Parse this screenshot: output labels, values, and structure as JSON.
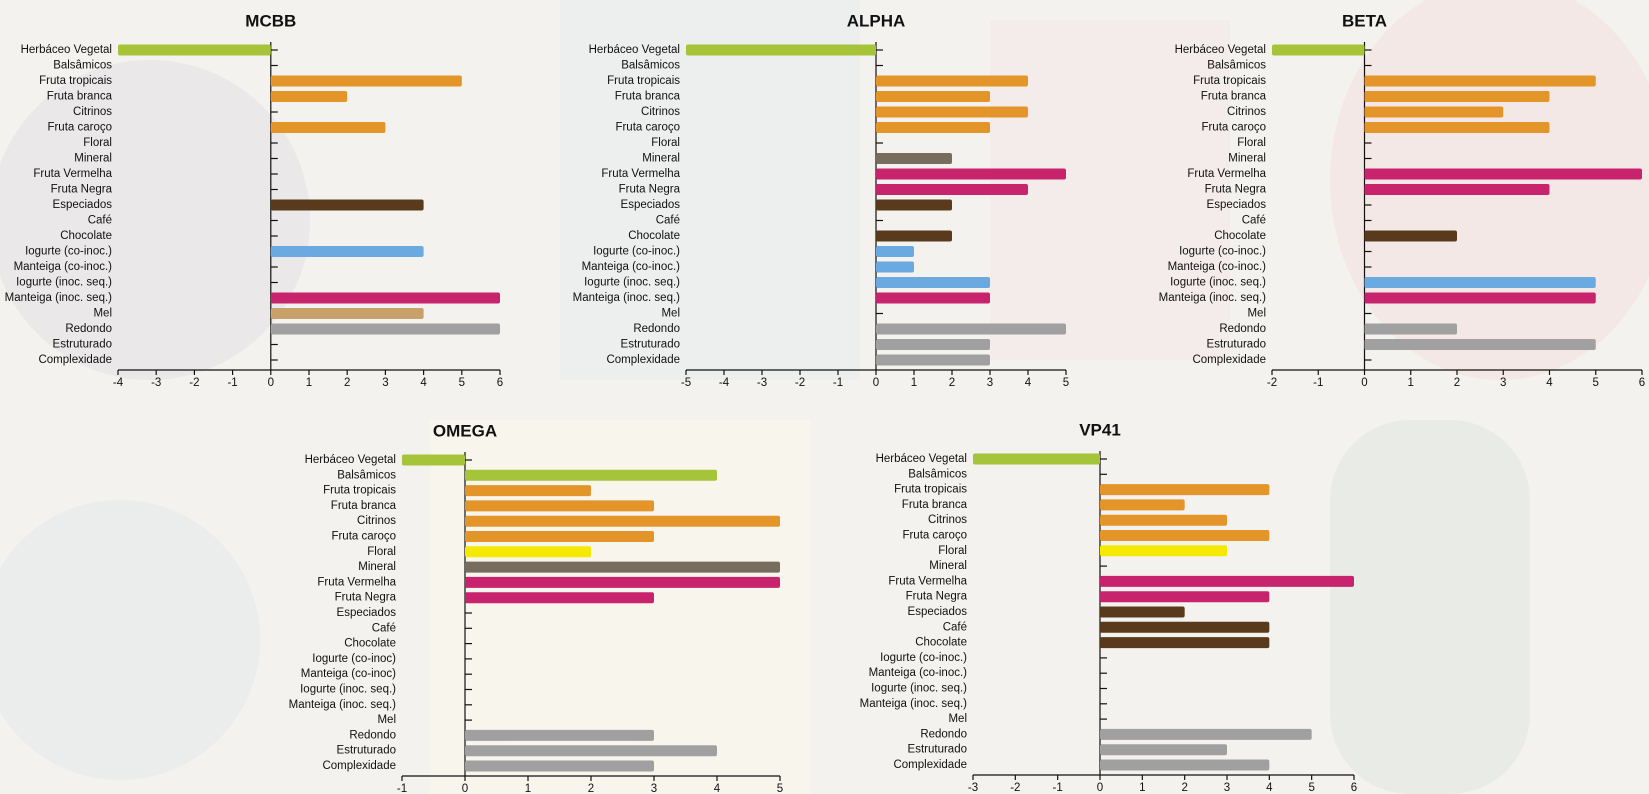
{
  "chart_data": [
    {
      "type": "bar",
      "orientation": "horizontal",
      "title": "MCBB",
      "categories": [
        "Herbáceo  Vegetal",
        "Balsâmicos",
        "Fruta tropicais",
        "Fruta branca",
        "Citrinos",
        "Fruta caroço",
        "Floral",
        "Mineral",
        "Fruta Vermelha",
        "Fruta Negra",
        "Especiados",
        "Café",
        "Chocolate",
        "Iogurte (co-inoc.)",
        "Manteiga  (co-inoc.)",
        "Iogurte (inoc. seq.)",
        "Manteiga (inoc. seq.)",
        "Mel",
        "Redondo",
        "Estruturado",
        "Complexidade"
      ],
      "values": [
        -4,
        0,
        5,
        2,
        0,
        3,
        0,
        0,
        0,
        0,
        4,
        0,
        0,
        4,
        0,
        0,
        6,
        4,
        6,
        0,
        0
      ],
      "colors": [
        "#a5c43a",
        "#a5c43a",
        "#e3952a",
        "#e3952a",
        "#e3952a",
        "#e3952a",
        "#f5e900",
        "#776d5c",
        "#c8246e",
        "#c8246e",
        "#5a3a1c",
        "#5a3a1c",
        "#5a3a1c",
        "#6aaae0",
        "#6aaae0",
        "#6aaae0",
        "#c8246e",
        "#c8a06a",
        "#a0a0a0",
        "#a0a0a0",
        "#a0a0a0"
      ],
      "xlim": [
        -4,
        6
      ],
      "xticks": [
        -4,
        -3,
        -2,
        -1,
        0,
        1,
        2,
        3,
        4,
        5,
        6
      ]
    },
    {
      "type": "bar",
      "orientation": "horizontal",
      "title": "ALPHA",
      "categories": [
        "Herbáceo  Vegetal",
        "Balsâmicos",
        "Fruta tropicais",
        "Fruta branca",
        "Citrinos",
        "Fruta caroço",
        "Floral",
        "Mineral",
        "Fruta Vermelha",
        "Fruta Negra",
        "Especiados",
        "Café",
        "Chocolate",
        "Iogurte (co-inoc.)",
        "Manteiga  (co-inoc.)",
        "Iogurte (inoc. seq.)",
        "Manteiga (inoc. seq.)",
        "Mel",
        "Redondo",
        "Estruturado",
        "Complexidade"
      ],
      "values": [
        -5,
        0,
        4,
        3,
        4,
        3,
        0,
        2,
        5,
        4,
        2,
        0,
        2,
        1,
        1,
        3,
        3,
        0,
        5,
        3,
        3
      ],
      "colors": [
        "#a5c43a",
        "#a5c43a",
        "#e3952a",
        "#e3952a",
        "#e3952a",
        "#e3952a",
        "#f5e900",
        "#776d5c",
        "#c8246e",
        "#c8246e",
        "#5a3a1c",
        "#5a3a1c",
        "#5a3a1c",
        "#6aaae0",
        "#6aaae0",
        "#6aaae0",
        "#c8246e",
        "#c8a06a",
        "#a0a0a0",
        "#a0a0a0",
        "#a0a0a0"
      ],
      "xlim": [
        -5,
        5
      ],
      "xticks": [
        -5,
        -4,
        -3,
        -2,
        -1,
        0,
        1,
        2,
        3,
        4,
        5
      ]
    },
    {
      "type": "bar",
      "orientation": "horizontal",
      "title": "BETA",
      "categories": [
        "Herbáceo  Vegetal",
        "Balsâmicos",
        "Fruta tropicais",
        "Fruta branca",
        "Citrinos",
        "Fruta caroço",
        "Floral",
        "Mineral",
        "Fruta Vermelha",
        "Fruta Negra",
        "Especiados",
        "Café",
        "Chocolate",
        "Iogurte (co-inoc.)",
        "Manteiga  (co-inoc.)",
        "Iogurte (inoc. seq.)",
        "Manteiga (inoc. seq.)",
        "Mel",
        "Redondo",
        "Estruturado",
        "Complexidade"
      ],
      "values": [
        -2,
        0,
        5,
        4,
        3,
        4,
        0,
        0,
        6,
        4,
        0,
        0,
        2,
        0,
        0,
        5,
        5,
        0,
        2,
        5,
        0
      ],
      "colors": [
        "#a5c43a",
        "#a5c43a",
        "#e3952a",
        "#e3952a",
        "#e3952a",
        "#e3952a",
        "#f5e900",
        "#776d5c",
        "#c8246e",
        "#c8246e",
        "#5a3a1c",
        "#5a3a1c",
        "#5a3a1c",
        "#6aaae0",
        "#6aaae0",
        "#6aaae0",
        "#c8246e",
        "#c8a06a",
        "#a0a0a0",
        "#a0a0a0",
        "#a0a0a0"
      ],
      "xlim": [
        -2,
        6
      ],
      "xticks": [
        -2,
        -1,
        0,
        1,
        2,
        3,
        4,
        5,
        6
      ]
    },
    {
      "type": "bar",
      "orientation": "horizontal",
      "title": "OMEGA",
      "categories": [
        "Herbáceo  Vegetal",
        "Balsâmicos",
        "Fruta tropicais",
        "Fruta branca",
        "Citrinos",
        "Fruta caroço",
        "Floral",
        "Mineral",
        "Fruta Vermelha",
        "Fruta Negra",
        "Especiados",
        "Café",
        "Chocolate",
        "Iogurte (co-inoc)",
        "Manteiga  (co-inoc)",
        "Iogurte (inoc. seq.)",
        "Manteiga (inoc. seq.)",
        "Mel",
        "Redondo",
        "Estruturado",
        "Complexidade"
      ],
      "values": [
        -1,
        4,
        2,
        3,
        5,
        3,
        2,
        5,
        5,
        3,
        0,
        0,
        0,
        0,
        0,
        0,
        0,
        0,
        3,
        4,
        3
      ],
      "colors": [
        "#a5c43a",
        "#a5c43a",
        "#e3952a",
        "#e3952a",
        "#e3952a",
        "#e3952a",
        "#f5e900",
        "#776d5c",
        "#c8246e",
        "#c8246e",
        "#5a3a1c",
        "#5a3a1c",
        "#5a3a1c",
        "#6aaae0",
        "#6aaae0",
        "#6aaae0",
        "#c8246e",
        "#c8a06a",
        "#a0a0a0",
        "#a0a0a0",
        "#a0a0a0"
      ],
      "xlim": [
        -1,
        5
      ],
      "xticks": [
        -1,
        0,
        1,
        2,
        3,
        4,
        5
      ]
    },
    {
      "type": "bar",
      "orientation": "horizontal",
      "title": "VP41",
      "categories": [
        "Herbáceo  Vegetal",
        "Balsâmicos",
        "Fruta tropicais",
        "Fruta branca",
        "Citrinos",
        "Fruta caroço",
        "Floral",
        "Mineral",
        "Fruta Vermelha",
        "Fruta Negra",
        "Especiados",
        "Café",
        "Chocolate",
        "Iogurte (co-inoc.)",
        "Manteiga  (co-inoc.)",
        "Iogurte (inoc. seq.)",
        "Manteiga (inoc. seq.)",
        "Mel",
        "Redondo",
        "Estruturado",
        "Complexidade"
      ],
      "values": [
        -3,
        0,
        4,
        2,
        3,
        4,
        3,
        0,
        6,
        4,
        2,
        4,
        4,
        0,
        0,
        0,
        0,
        0,
        5,
        3,
        4
      ],
      "colors": [
        "#a5c43a",
        "#a5c43a",
        "#e3952a",
        "#e3952a",
        "#e3952a",
        "#e3952a",
        "#f5e900",
        "#776d5c",
        "#c8246e",
        "#c8246e",
        "#5a3a1c",
        "#5a3a1c",
        "#5a3a1c",
        "#6aaae0",
        "#6aaae0",
        "#6aaae0",
        "#c8246e",
        "#c8a06a",
        "#a0a0a0",
        "#a0a0a0",
        "#a0a0a0"
      ],
      "xlim": [
        -3,
        6
      ],
      "xticks": [
        -3,
        -2,
        -1,
        0,
        1,
        2,
        3,
        4,
        5,
        6
      ]
    }
  ]
}
